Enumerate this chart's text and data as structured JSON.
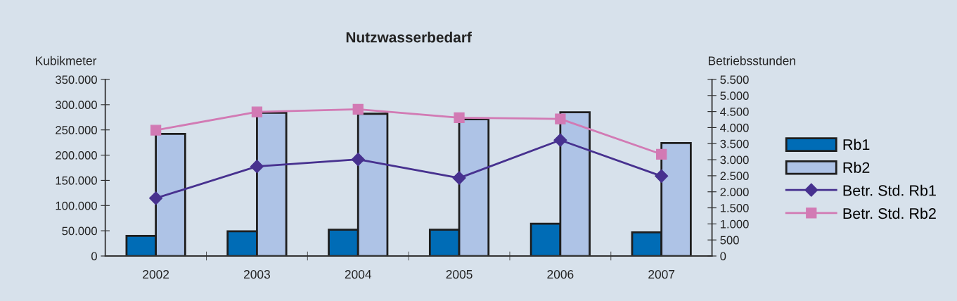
{
  "chart_data": {
    "type": "bar",
    "title": "Nutzwasserbedarf",
    "ylabel": "Kubikmeter",
    "y2label": "Betriebsstunden",
    "categories": [
      "2002",
      "2003",
      "2004",
      "2005",
      "2006",
      "2007"
    ],
    "series": [
      {
        "name": "Rb1",
        "color": "#006cb6",
        "values": [
          40000,
          49000,
          52000,
          52000,
          64000,
          47000
        ]
      },
      {
        "name": "Rb2",
        "color": "#aec3e6",
        "values": [
          242000,
          284000,
          282000,
          271000,
          285000,
          224000
        ]
      },
      {
        "name": "Betr. Std. Rb1",
        "type": "line",
        "axis": "y2",
        "color": "#47318f",
        "marker": "diamond",
        "values": [
          1800,
          2790,
          3010,
          2430,
          3610,
          2490
        ]
      },
      {
        "name": "Betr. Std. Rb2",
        "type": "line",
        "axis": "y2",
        "color": "#d27ab4",
        "marker": "square",
        "values": [
          3920,
          4490,
          4570,
          4310,
          4270,
          3170
        ]
      }
    ],
    "ylim": [
      0,
      350000
    ],
    "yticks": [
      0,
      {
        "value": 50000,
        "label": "50.000"
      },
      {
        "value": 100000,
        "label": "100.000"
      },
      {
        "value": 150000,
        "label": "150.000"
      },
      {
        "value": 200000,
        "label": "200.000"
      },
      {
        "value": 250000,
        "label": "250.000"
      },
      {
        "value": 300000,
        "label": "300.000"
      },
      {
        "value": 350000,
        "label": "350.000"
      }
    ],
    "y2lim": [
      0,
      5500
    ],
    "y2ticks": [
      0,
      500,
      {
        "value": 1000,
        "label": "1.000"
      },
      {
        "value": 1500,
        "label": "1.500"
      },
      {
        "value": 2000,
        "label": "2.000"
      },
      {
        "value": 2500,
        "label": "2.500"
      },
      {
        "value": 3000,
        "label": "3.000"
      },
      {
        "value": 3500,
        "label": "3.500"
      },
      {
        "value": 4000,
        "label": "4.000"
      },
      {
        "value": 4500,
        "label": "4.500"
      },
      {
        "value": 5000,
        "label": "5.000"
      },
      {
        "value": 5500,
        "label": "5.500"
      }
    ],
    "grid": false,
    "legend": "right",
    "line_style": "solid"
  }
}
